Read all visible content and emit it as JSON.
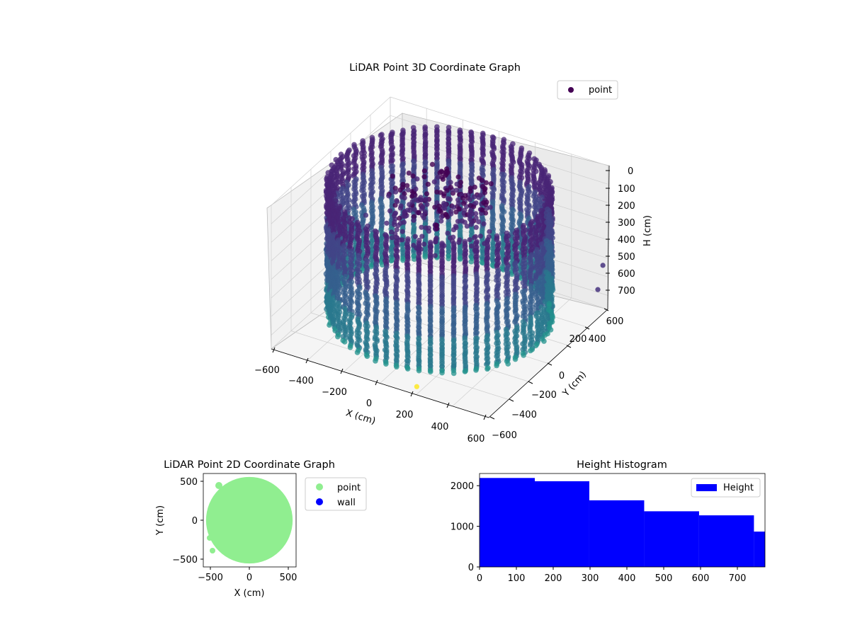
{
  "chart_data": [
    {
      "type": "scatter",
      "subtype": "3d",
      "title": "LiDAR Point 3D Coordinate Graph",
      "xlabel": "X (cm)",
      "ylabel": "Y (cm)",
      "zlabel": "H (cm)",
      "xlim": [
        -600,
        600
      ],
      "ylim": [
        -600,
        600
      ],
      "zlim": [
        0,
        775
      ],
      "z_inverted": true,
      "xticks": [
        "−600",
        "−400",
        "−200",
        "0",
        "200",
        "400",
        "600"
      ],
      "yticks": [
        "−600",
        "−400",
        "−200",
        "0",
        "200",
        "400",
        "600"
      ],
      "zticks": [
        "0",
        "100",
        "200",
        "300",
        "400",
        "500",
        "600",
        "700"
      ],
      "grid": true,
      "legend": {
        "position": "top-right",
        "entries": [
          {
            "label": "point",
            "color": "#440154"
          }
        ]
      },
      "colormap": "viridis",
      "outer_ring": {
        "radius_cm": 540,
        "height_range_cm": [
          0,
          700
        ],
        "vertical_stripe_count": 60
      },
      "inner_cluster": {
        "radius_cm": 260,
        "height_range_cm": [
          0,
          260
        ]
      },
      "outliers": [
        {
          "x": 595,
          "y": 560,
          "h": 520,
          "color": "#46337e"
        },
        {
          "x": 600,
          "y": 500,
          "h": 620,
          "color": "#46337e"
        },
        {
          "x": -560,
          "y": 280,
          "h": 470,
          "color": "#46337e"
        },
        {
          "x": 170,
          "y": -540,
          "h": 770,
          "color": "#fde725"
        }
      ]
    },
    {
      "type": "scatter",
      "title": "LiDAR Point 2D Coordinate Graph",
      "xlabel": "X (cm)",
      "ylabel": "Y (cm)",
      "xlim": [
        -600,
        600
      ],
      "ylim": [
        -600,
        600
      ],
      "xticks": [
        "−500",
        "0",
        "500"
      ],
      "yticks": [
        "−500",
        "0",
        "500"
      ],
      "region": {
        "shape": "disc",
        "radius_cm": 560,
        "center": [
          0,
          0
        ]
      },
      "series": [
        {
          "name": "point",
          "color": "#90ee90"
        },
        {
          "name": "wall",
          "color": "#0000ff"
        }
      ],
      "legend": {
        "position": "outside-right"
      }
    },
    {
      "type": "bar",
      "subtype": "histogram",
      "title": "Height Histogram",
      "xlabel": "",
      "ylabel": "",
      "xlim": [
        0,
        775
      ],
      "ylim": [
        0,
        2300
      ],
      "xticks": [
        "0",
        "100",
        "200",
        "300",
        "400",
        "500",
        "600",
        "700"
      ],
      "yticks": [
        "0",
        "1000",
        "2000"
      ],
      "bins": [
        {
          "start": 0,
          "end": 150,
          "count": 2190
        },
        {
          "start": 150,
          "end": 298,
          "count": 2110
        },
        {
          "start": 298,
          "end": 447,
          "count": 1640
        },
        {
          "start": 447,
          "end": 596,
          "count": 1370
        },
        {
          "start": 596,
          "end": 745,
          "count": 1270
        },
        {
          "start": 745,
          "end": 775,
          "count": 870
        }
      ],
      "bar_color": "#0000ff",
      "legend": {
        "position": "top-right",
        "entries": [
          {
            "label": "Height",
            "color": "#0000ff"
          }
        ]
      }
    }
  ]
}
